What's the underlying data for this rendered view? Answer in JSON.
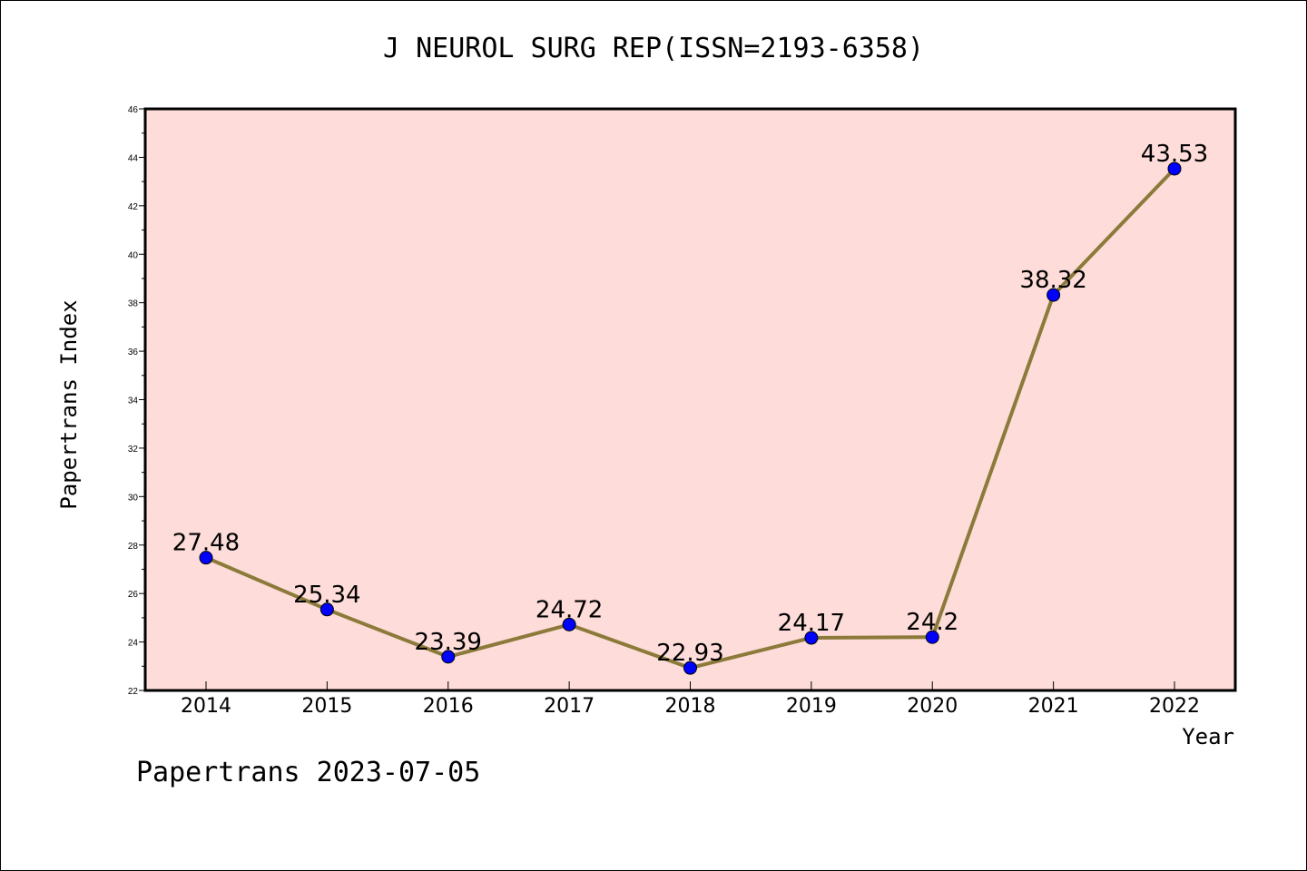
{
  "chart_data": {
    "type": "line",
    "title": "J NEUROL SURG REP(ISSN=2193-6358)",
    "xlabel": "Year",
    "ylabel": "Papertrans Index",
    "categories": [
      "2014",
      "2015",
      "2016",
      "2017",
      "2018",
      "2019",
      "2020",
      "2021",
      "2022"
    ],
    "series": [
      {
        "values": [
          27.48,
          25.34,
          23.39,
          24.72,
          22.93,
          24.17,
          24.2,
          38.32,
          43.53
        ],
        "labels": [
          "27.48",
          "25.34",
          "23.39",
          "24.72",
          "22.93",
          "24.17",
          "24.2",
          "38.32",
          "43.53"
        ]
      }
    ],
    "ylim": [
      22,
      46
    ],
    "yticks": [
      22,
      24,
      26,
      28,
      30,
      32,
      34,
      36,
      38,
      40,
      42,
      44,
      46
    ],
    "grid": false,
    "colors": {
      "plot_background": "#fddcd9",
      "line": "#8b7a3a",
      "marker": "#0000ff"
    }
  },
  "footer": "Papertrans 2023-07-05"
}
